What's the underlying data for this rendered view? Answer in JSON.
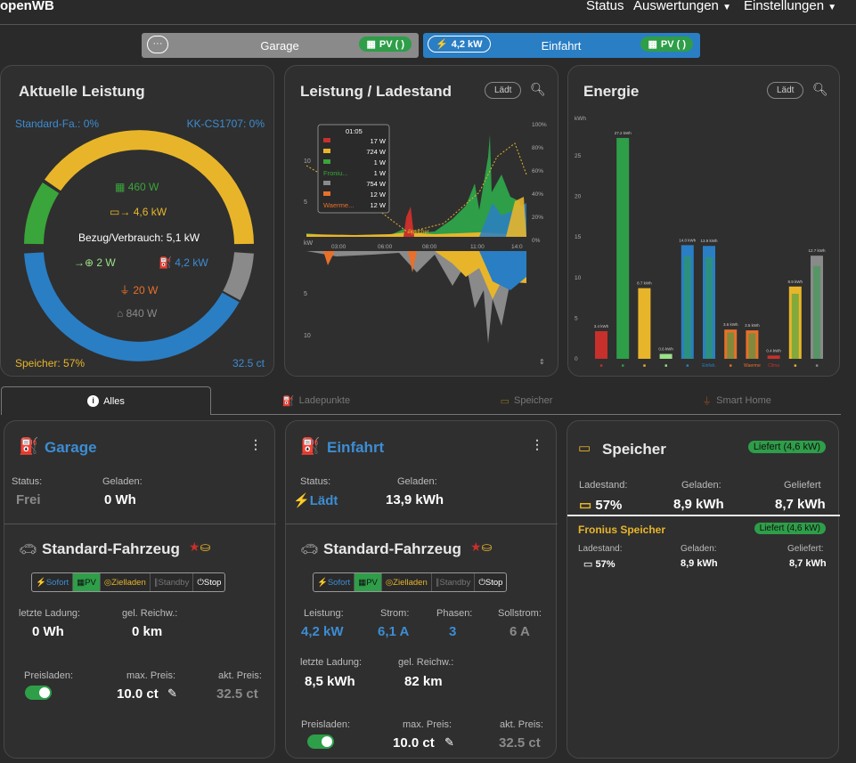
{
  "header": {
    "brand": "openWB",
    "nav_status": "Status",
    "nav_auswertungen": "Auswertungen",
    "nav_einstellungen": "Einstellungen"
  },
  "chargepoint_tabs": [
    {
      "name": "Garage",
      "badge": "PV ( )",
      "bg": "#8a8a8a"
    },
    {
      "name": "Einfahrt",
      "power": "4,2 kW",
      "badge": "PV ( )",
      "bg": "#2a7ec4"
    }
  ],
  "power_card": {
    "title": "Aktuelle Leistung",
    "cp1_label": "Standard-Fa.: 0%",
    "cp2_label": "KK-CS1707: 0%",
    "pv": "460 W",
    "battery": "4,6 kW",
    "consumption": "Bezug/Verbrauch: 5,1 kW",
    "counter": "2 W",
    "charging": "4,2 kW",
    "smarthome": "20 W",
    "house": "840 W",
    "battery_soc": "Speicher: 57%",
    "price": "32.5 ct"
  },
  "chart_card": {
    "title": "Leistung / Ladestand",
    "button": "Lädt",
    "tooltip_time": "01:05",
    "tooltip_rows": [
      {
        "label": "",
        "value": "17 W"
      },
      {
        "label": "",
        "value": "724 W"
      },
      {
        "label": "",
        "value": "1 W"
      },
      {
        "label": "Froniu...",
        "value": "1 W"
      },
      {
        "label": "",
        "value": "754 W"
      },
      {
        "label": "",
        "value": "12 W"
      },
      {
        "label": "Waerme...",
        "value": "12 W"
      }
    ],
    "y_left": [
      "10",
      "5",
      "0",
      "5",
      "10"
    ],
    "y_right": [
      "100%",
      "80%",
      "60%",
      "40%",
      "20%",
      "0%"
    ],
    "x_ticks": [
      "kW",
      "03:00",
      "06:00",
      "08:00",
      "11:00",
      "14:0"
    ],
    "speicher_label": "Speicher",
    "kw_label": "kW"
  },
  "energy_card": {
    "title": "Energie",
    "button": "Lädt",
    "unit": "kWh",
    "y_ticks": [
      "25",
      "20",
      "15",
      "10",
      "5",
      "0"
    ],
    "bars": [
      {
        "label": "3.4 kWh",
        "color": "#c7302b",
        "value": 3.4,
        "xl": "",
        "inner": 0
      },
      {
        "label": "27.2 kWh",
        "color": "#2e9e49",
        "value": 27.2,
        "xl": "",
        "inner": 0
      },
      {
        "label": "8.7 kWh",
        "color": "#e8b52a",
        "value": 8.7,
        "xl": "",
        "inner": 0
      },
      {
        "label": "0.6 kWh",
        "color": "#9de08a",
        "value": 0.6,
        "xl": "",
        "inner": 0
      },
      {
        "label": "14.0 kWh",
        "color": "#2a7ec4",
        "value": 14.0,
        "xl": "",
        "inner": 14.0
      },
      {
        "label": "13.9 kWh",
        "color": "#2a7ec4",
        "value": 13.9,
        "xl": "Einfah.",
        "inner": 13.9
      },
      {
        "label": "3.6 kWh",
        "color": "#e8702a",
        "value": 3.6,
        "xl": "",
        "inner": 3.6
      },
      {
        "label": "3.5 kWh",
        "color": "#e8702a",
        "value": 3.5,
        "xl": "Waerme",
        "inner": 3.5
      },
      {
        "label": "0.4 kWh",
        "color": "#c7302b",
        "value": 0.4,
        "xl": "Clima",
        "inner": 0
      },
      {
        "label": "8.9 kWh",
        "color": "#e8b52a",
        "value": 8.9,
        "xl": "",
        "inner": 8.9
      },
      {
        "label": "12.7 kWh",
        "color": "#8a8a8a",
        "value": 12.7,
        "xl": "",
        "inner": 12.7
      }
    ]
  },
  "tabs": [
    {
      "label": "Alles"
    },
    {
      "label": "Ladepunkte"
    },
    {
      "label": "Speicher"
    },
    {
      "label": "Smart Home"
    }
  ],
  "cp_garage": {
    "title": "Garage",
    "status_label": "Status:",
    "status": "Frei",
    "loaded_label": "Geladen:",
    "loaded": "0 Wh",
    "vehicle": "Standard-Fahrzeug",
    "modes": [
      "Sofort",
      "PV",
      "Zielladen",
      "Standby",
      "Stop"
    ],
    "last_label": "letzte Ladung:",
    "last": "0 Wh",
    "range_label": "gel. Reichw.:",
    "range": "0 km",
    "price_label": "Preisladen:",
    "maxprice_label": "max. Preis:",
    "maxprice": "10.0 ct",
    "actprice_label": "akt. Preis:",
    "actprice": "32.5 ct"
  },
  "cp_einfahrt": {
    "title": "Einfahrt",
    "status_label": "Status:",
    "status": "Lädt",
    "loaded_label": "Geladen:",
    "loaded": "13,9 kWh",
    "vehicle": "Standard-Fahrzeug",
    "modes": [
      "Sofort",
      "PV",
      "Zielladen",
      "Standby",
      "Stop"
    ],
    "power_label": "Leistung:",
    "power": "4,2 kW",
    "current_label": "Strom:",
    "current": "6,1 A",
    "phases_label": "Phasen:",
    "phases": "3",
    "target_label": "Sollstrom:",
    "target": "6 A",
    "last_label": "letzte Ladung:",
    "last": "8,5 kWh",
    "range_label": "gel. Reichw.:",
    "range": "82 km",
    "price_label": "Preisladen:",
    "maxprice_label": "max. Preis:",
    "maxprice": "10.0 ct",
    "actprice_label": "akt. Preis:",
    "actprice": "32.5 ct"
  },
  "battery_card": {
    "title": "Speicher",
    "badge": "Liefert (4,6 kW)",
    "soc_label": "Ladestand:",
    "soc": "57%",
    "loaded_label": "Geladen:",
    "loaded": "8,9 kWh",
    "delivered_label": "Geliefert",
    "delivered": "8,7 kWh",
    "sub_title": "Fronius Speicher",
    "sub_badge": "Liefert (4,6 kW)",
    "sub_soc_label": "Ladestand:",
    "sub_soc": "57%",
    "sub_loaded_label": "Geladen:",
    "sub_loaded": "8,9 kWh",
    "sub_delivered_label": "Geliefert:",
    "sub_delivered": "8,7 kWh"
  }
}
